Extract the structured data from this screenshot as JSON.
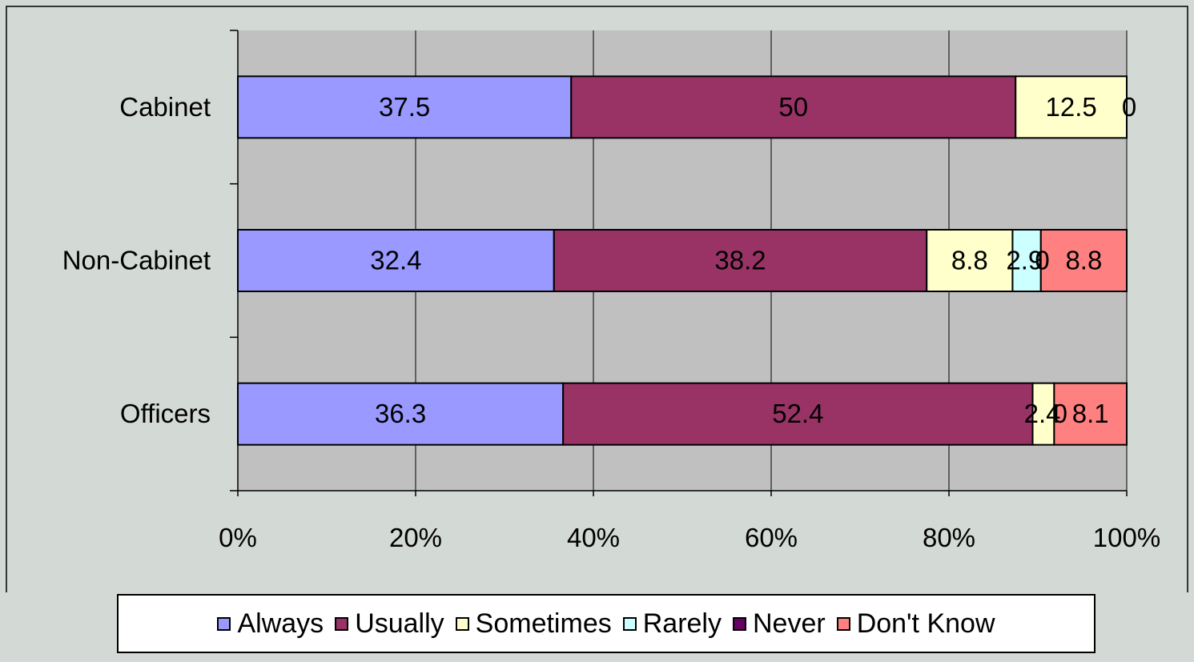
{
  "chart_data": {
    "type": "bar",
    "orientation": "horizontal",
    "stacked": "percent",
    "categories": [
      "Cabinet",
      "Non-Cabinet",
      "Officers"
    ],
    "series": [
      {
        "name": "Always",
        "color": "#9999ff",
        "values": [
          37.5,
          32.4,
          36.3
        ],
        "labels": [
          "37.5",
          "32.4",
          "36.3"
        ]
      },
      {
        "name": "Usually",
        "color": "#993366",
        "values": [
          50,
          38.2,
          52.4
        ],
        "labels": [
          "50",
          "38.2",
          "52.4"
        ]
      },
      {
        "name": "Sometimes",
        "color": "#ffffcc",
        "values": [
          12.5,
          8.8,
          2.4
        ],
        "labels": [
          "12.5",
          "8.8",
          "2.4"
        ]
      },
      {
        "name": "Rarely",
        "color": "#ccffff",
        "values": [
          0,
          2.9,
          0
        ],
        "labels": [
          "0",
          "2.9",
          "0"
        ]
      },
      {
        "name": "Never",
        "color": "#660066",
        "values": [
          0,
          0,
          0
        ],
        "labels": [
          "0",
          "0",
          "0"
        ]
      },
      {
        "name": "Don't Know",
        "color": "#ff8080",
        "values": [
          0,
          8.8,
          8.1
        ],
        "labels": [
          "0",
          "8.8",
          "8.1"
        ]
      }
    ],
    "x_ticks": [
      "0%",
      "20%",
      "40%",
      "60%",
      "80%",
      "100%"
    ],
    "xlim": [
      0,
      100
    ],
    "title": "",
    "xlabel": "",
    "ylabel": "",
    "grid": true,
    "legend_position": "bottom",
    "plot_background": "#c0c0c0",
    "page_background": "#d3d9d4"
  }
}
